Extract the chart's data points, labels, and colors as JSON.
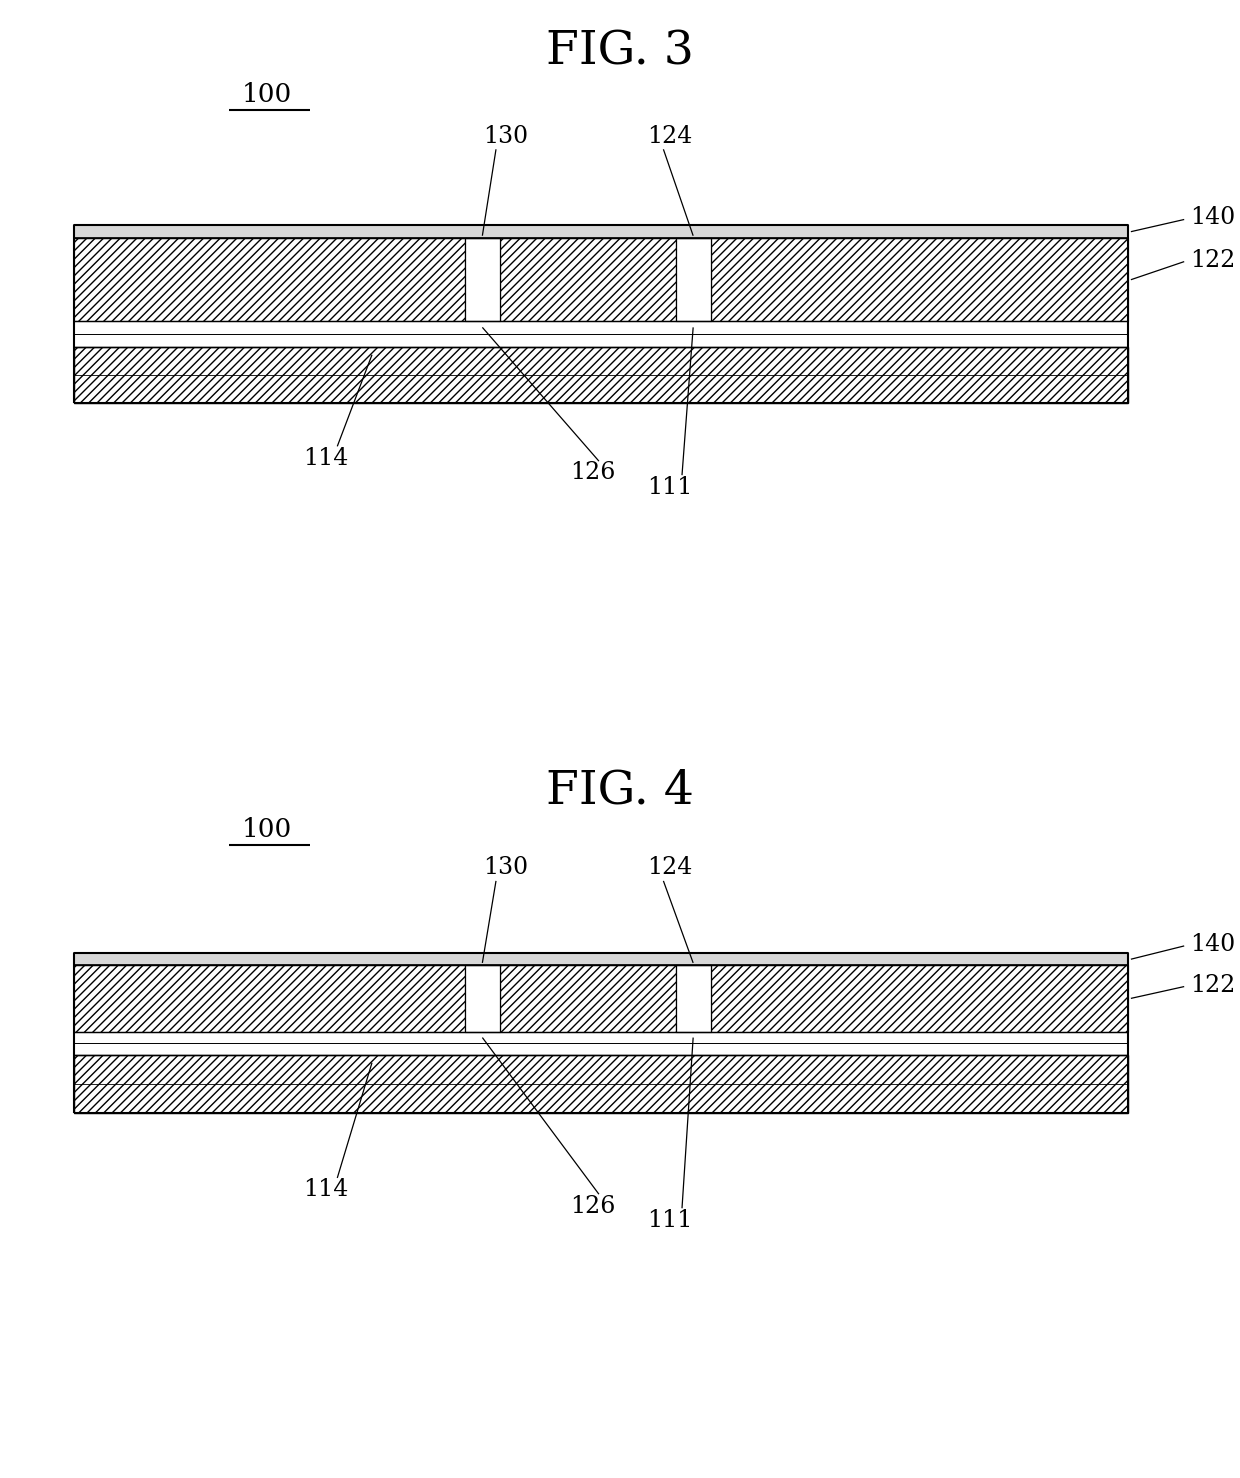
{
  "fig3_title": "FIG. 3",
  "fig4_title": "FIG. 4",
  "bg_color": "#ffffff",
  "label_100": "100",
  "label_130": "130",
  "label_124": "124",
  "label_140": "140",
  "label_122": "122",
  "label_114": "114",
  "label_126": "126",
  "label_111": "111"
}
